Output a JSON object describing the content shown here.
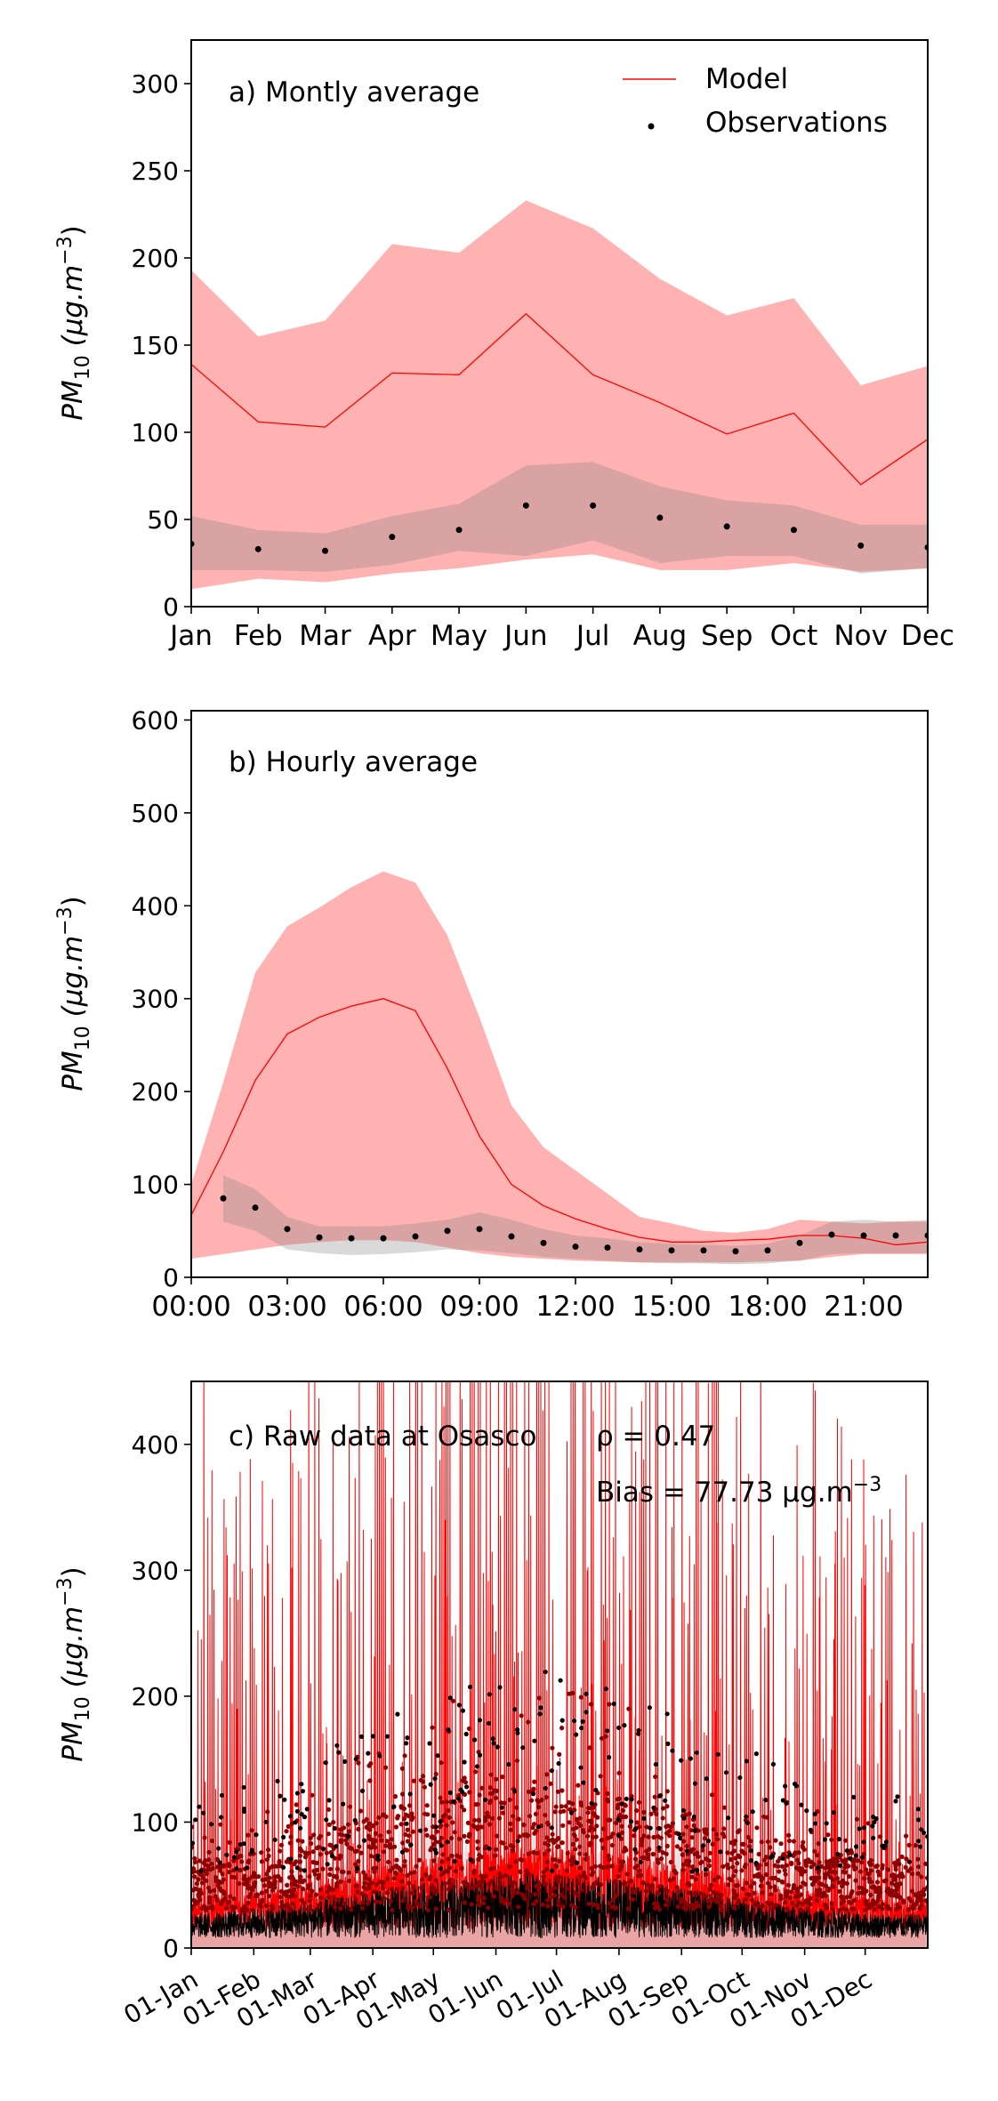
{
  "chart_data": [
    {
      "type": "line",
      "panel_label": "a) Montly average",
      "ylabel_main": "PM",
      "ylabel_sub": "10",
      "ylabel_units": " (μg.m",
      "ylabel_sup": "−3",
      "ylabel_close": ")",
      "ylim": [
        0,
        325
      ],
      "yticks": [
        0,
        50,
        100,
        150,
        200,
        250,
        300
      ],
      "x": [
        0,
        1,
        2,
        3,
        4,
        5,
        6,
        7,
        8,
        9,
        10,
        11
      ],
      "xticklabels": [
        "Jan",
        "Feb",
        "Mar",
        "Apr",
        "May",
        "Jun",
        "Jul",
        "Aug",
        "Sep",
        "Oct",
        "Nov",
        "Dec"
      ],
      "xlim": [
        0,
        11
      ],
      "legend": [
        {
          "label": "Model",
          "kind": "line",
          "color": "#ff0000"
        },
        {
          "label": "Observations",
          "kind": "dot",
          "color": "#000000"
        }
      ],
      "series": [
        {
          "name": "Model",
          "kind": "line",
          "color": "#ff0000",
          "values": [
            139,
            106,
            103,
            134,
            133,
            168,
            133,
            117,
            99,
            111,
            70,
            96
          ]
        },
        {
          "name": "Observations",
          "kind": "dots",
          "color": "#000000",
          "values": [
            36,
            33,
            32,
            40,
            44,
            58,
            58,
            51,
            46,
            44,
            35,
            34
          ]
        }
      ],
      "bands": [
        {
          "of": "Model",
          "color": "#ff0000",
          "opacity": 0.3,
          "lower": [
            10,
            16,
            14,
            19,
            22,
            27,
            30,
            21,
            21,
            25,
            20,
            22
          ],
          "upper": [
            193,
            155,
            164,
            208,
            203,
            233,
            217,
            188,
            167,
            177,
            127,
            138
          ]
        },
        {
          "of": "Observations",
          "color": "#808080",
          "opacity": 0.3,
          "lower": [
            21,
            21,
            20,
            24,
            32,
            29,
            38,
            25,
            29,
            29,
            19,
            22
          ],
          "upper": [
            52,
            44,
            42,
            52,
            59,
            81,
            83,
            69,
            61,
            58,
            47,
            47
          ]
        }
      ]
    },
    {
      "type": "line",
      "panel_label": "b) Hourly average",
      "ylabel_main": "PM",
      "ylabel_sub": "10",
      "ylabel_units": " (μg.m",
      "ylabel_sup": "−3",
      "ylabel_close": ")",
      "ylim": [
        0,
        610
      ],
      "yticks": [
        0,
        100,
        200,
        300,
        400,
        500,
        600
      ],
      "xlim": [
        0,
        23
      ],
      "xticks": [
        0,
        3,
        6,
        9,
        12,
        15,
        18,
        21
      ],
      "xticklabels": [
        "00:00",
        "03:00",
        "06:00",
        "09:00",
        "12:00",
        "15:00",
        "18:00",
        "21:00"
      ],
      "series": [
        {
          "name": "Model",
          "kind": "line",
          "color": "#ff0000",
          "x": [
            0,
            1,
            2,
            3,
            4,
            5,
            6,
            7,
            8,
            9,
            10,
            11,
            12,
            13,
            14,
            15,
            16,
            17,
            18,
            19,
            20,
            21,
            22,
            23
          ],
          "values": [
            67,
            135,
            212,
            262,
            280,
            292,
            300,
            287,
            225,
            152,
            100,
            77,
            63,
            52,
            43,
            38,
            38,
            40,
            41,
            45,
            45,
            42,
            35,
            38
          ]
        },
        {
          "name": "Observations",
          "kind": "dots",
          "color": "#000000",
          "x": [
            1,
            2,
            3,
            4,
            5,
            6,
            7,
            8,
            9,
            10,
            11,
            12,
            13,
            14,
            15,
            16,
            17,
            18,
            19,
            20,
            21,
            22,
            23
          ],
          "values": [
            85,
            75,
            52,
            43,
            42,
            42,
            44,
            50,
            52,
            44,
            37,
            33,
            32,
            30,
            29,
            29,
            28,
            29,
            37,
            46,
            45,
            45,
            45
          ]
        }
      ],
      "bands": [
        {
          "of": "Model",
          "color": "#ff0000",
          "opacity": 0.3,
          "x": [
            0,
            1,
            2,
            3,
            4,
            5,
            6,
            7,
            8,
            9,
            10,
            11,
            12,
            13,
            14,
            15,
            16,
            17,
            18,
            19,
            20,
            21,
            22,
            23
          ],
          "lower": [
            20,
            25,
            30,
            35,
            38,
            40,
            40,
            38,
            32,
            26,
            22,
            20,
            18,
            17,
            16,
            16,
            16,
            16,
            17,
            18,
            22,
            25,
            25,
            25
          ],
          "upper": [
            100,
            210,
            328,
            378,
            398,
            420,
            437,
            425,
            368,
            280,
            185,
            140,
            115,
            90,
            65,
            58,
            50,
            48,
            52,
            62,
            60,
            58,
            60,
            60
          ]
        },
        {
          "of": "Observations",
          "color": "#808080",
          "opacity": 0.3,
          "x": [
            1,
            2,
            3,
            4,
            5,
            6,
            7,
            8,
            9,
            10,
            11,
            12,
            13,
            14,
            15,
            16,
            17,
            18,
            19,
            20,
            21,
            22,
            23
          ],
          "lower": [
            60,
            50,
            30,
            26,
            24,
            25,
            27,
            30,
            29,
            26,
            22,
            20,
            18,
            16,
            15,
            15,
            14,
            15,
            18,
            25,
            26,
            26,
            26
          ],
          "upper": [
            110,
            95,
            65,
            55,
            55,
            55,
            58,
            62,
            70,
            62,
            52,
            45,
            42,
            38,
            36,
            35,
            34,
            36,
            45,
            60,
            62,
            60,
            62
          ]
        }
      ]
    },
    {
      "type": "line",
      "panel_label": "c) Raw data at Osasco",
      "rho_text": "ρ = 0.47",
      "bias_text": "Bias = 77.73 μg.m",
      "bias_sup": "−3",
      "ylabel_main": "PM",
      "ylabel_sub": "10",
      "ylabel_units": " (μg.m",
      "ylabel_sup": "−3",
      "ylabel_close": ")",
      "ylim": [
        0,
        450
      ],
      "yticks": [
        0,
        100,
        200,
        300,
        400
      ],
      "xlim": [
        0,
        8760
      ],
      "xticks": [
        0,
        744,
        1416,
        2160,
        2880,
        3624,
        4344,
        5088,
        5832,
        6552,
        7296,
        8016
      ],
      "xticklabels": [
        "01-Jan",
        "01-Feb",
        "01-Mar",
        "01-Apr",
        "01-May",
        "01-Jun",
        "01-Jul",
        "01-Aug",
        "01-Sep",
        "01-Oct",
        "01-Nov",
        "01-Dec"
      ],
      "x_unit": "hours of the year",
      "series": [
        {
          "name": "Model",
          "kind": "line",
          "color": "#ff0000",
          "typical_range": [
            0,
            450
          ],
          "note_spikes_clipped": true
        },
        {
          "name": "Observations",
          "kind": "dots",
          "color": "#000000",
          "typical_range": [
            0,
            180
          ]
        }
      ]
    }
  ]
}
